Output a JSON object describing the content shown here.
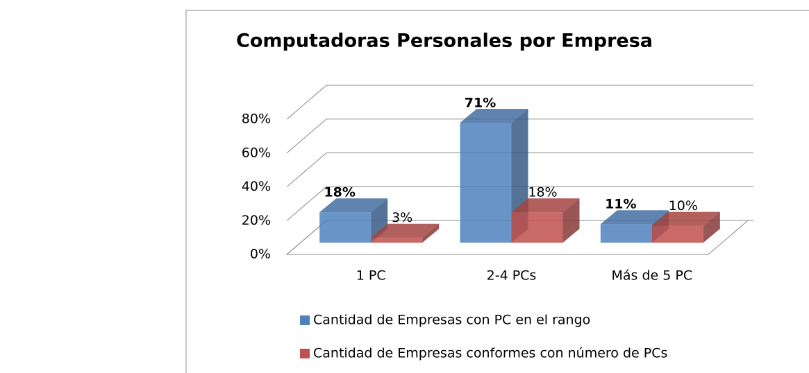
{
  "chart_data": {
    "type": "bar3d",
    "title": "Computadoras Personales por Empresa",
    "categories": [
      "1 PC",
      "2-4 PCs",
      "Más de 5 PC"
    ],
    "series": [
      {
        "name": "Cantidad de Empresas con PC en el rango",
        "color": "#4f81bd",
        "values": [
          18,
          71,
          11
        ],
        "value_labels": [
          "18%",
          "71%",
          "11%"
        ]
      },
      {
        "name": "Cantidad de Empresas conformes con número de PCs",
        "color": "#c0504d",
        "values": [
          3,
          18,
          10
        ],
        "value_labels": [
          "3%",
          "18%",
          "10%"
        ]
      }
    ],
    "ylim": [
      0,
      80
    ],
    "yticks": [
      {
        "value": 0,
        "label": "0%"
      },
      {
        "value": 20,
        "label": "20%"
      },
      {
        "value": 40,
        "label": "40%"
      },
      {
        "value": 60,
        "label": "60%"
      },
      {
        "value": 80,
        "label": "80%"
      }
    ],
    "grid": true
  }
}
